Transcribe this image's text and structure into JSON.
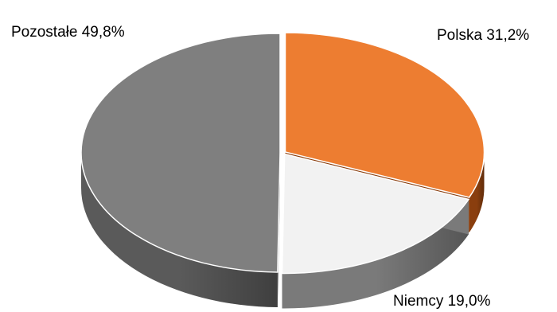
{
  "chart_data": {
    "type": "pie",
    "style": "3d-exploded",
    "title": "",
    "legend": "none",
    "categories": [
      "Polska",
      "Niemcy",
      "Pozostałe"
    ],
    "values": [
      31.2,
      19.0,
      49.8
    ],
    "labels": [
      "Polska  31,2%",
      "Niemcy  19,0%",
      "Pozostałe 49,8%"
    ],
    "colors": [
      "#ed7d31",
      "#f2f2f2",
      "#7f7f7f"
    ],
    "side_colors": [
      "#8a3e0e",
      "#7a7a7a",
      "#5a5a5a"
    ]
  }
}
